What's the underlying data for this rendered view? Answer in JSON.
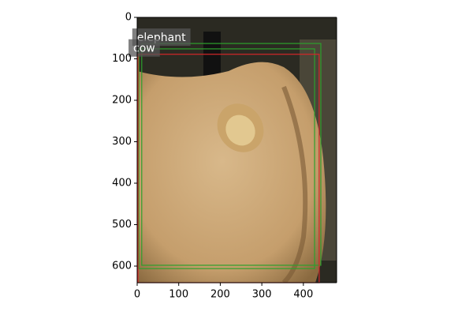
{
  "chart_data": {
    "type": "image",
    "xlim": [
      0,
      480
    ],
    "ylim": [
      640,
      0
    ],
    "xticks": [
      0,
      100,
      200,
      300,
      400
    ],
    "yticks": [
      0,
      100,
      200,
      300,
      400,
      500,
      600
    ],
    "boxes": [
      {
        "label": "elephant",
        "color": "#2ca02c",
        "x": [
          11,
          442
        ],
        "y": [
          63,
          598
        ]
      },
      {
        "color": "#2ca02c",
        "x": [
          4,
          427
        ],
        "y": [
          76,
          606
        ]
      },
      {
        "label": "cow",
        "color": "#d62728",
        "x": [
          2,
          438
        ],
        "y": [
          89,
          640
        ]
      }
    ]
  }
}
